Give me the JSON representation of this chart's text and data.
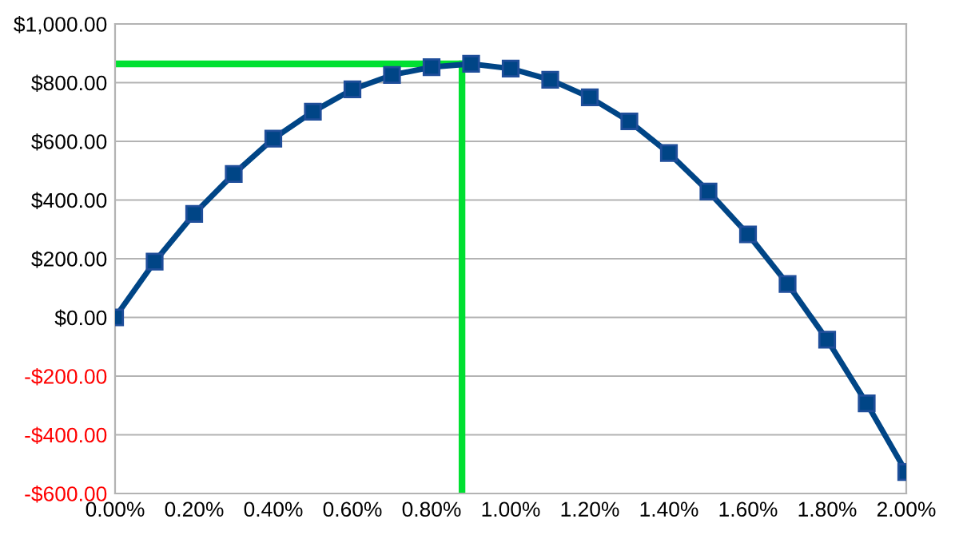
{
  "chart_data": {
    "type": "line",
    "x": [
      0,
      0.1,
      0.2,
      0.3,
      0.4,
      0.5,
      0.6,
      0.7,
      0.8,
      0.9,
      1.0,
      1.1,
      1.2,
      1.3,
      1.4,
      1.5,
      1.6,
      1.7,
      1.8,
      1.9,
      2.0
    ],
    "series": [
      {
        "color": "#004586",
        "marker": "square",
        "values": [
          0,
          190,
          353,
          489,
          609,
          701,
          777,
          826,
          853,
          864,
          848,
          810,
          750,
          668,
          560,
          429,
          283,
          114,
          -76,
          -293,
          -527
        ]
      }
    ],
    "ref_lines": [
      {
        "axis": "y",
        "value": 864,
        "color": "#00e031"
      },
      {
        "axis": "x",
        "value": 0.877,
        "color": "#00e031"
      }
    ],
    "xlim": [
      0,
      2
    ],
    "ylim": [
      -600,
      1000
    ],
    "xticks": [
      {
        "value": 0,
        "label": "0.00%"
      },
      {
        "value": 0.2,
        "label": "0.20%"
      },
      {
        "value": 0.4,
        "label": "0.40%"
      },
      {
        "value": 0.6,
        "label": "0.60%"
      },
      {
        "value": 0.8,
        "label": "0.80%"
      },
      {
        "value": 1.0,
        "label": "1.00%"
      },
      {
        "value": 1.2,
        "label": "1.20%"
      },
      {
        "value": 1.4,
        "label": "1.40%"
      },
      {
        "value": 1.6,
        "label": "1.60%"
      },
      {
        "value": 1.8,
        "label": "1.80%"
      },
      {
        "value": 2.0,
        "label": "2.00%"
      }
    ],
    "yticks": [
      {
        "value": -600,
        "label": "-$600.00"
      },
      {
        "value": -400,
        "label": "-$400.00"
      },
      {
        "value": -200,
        "label": "-$200.00"
      },
      {
        "value": 0,
        "label": "$0.00"
      },
      {
        "value": 200,
        "label": "$200.00"
      },
      {
        "value": 400,
        "label": "$400.00"
      },
      {
        "value": 600,
        "label": "$600.00"
      },
      {
        "value": 800,
        "label": "$800.00"
      },
      {
        "value": 1000,
        "label": "$1,000.00"
      }
    ],
    "grid": "y",
    "legend": false,
    "line_style": "solid"
  }
}
